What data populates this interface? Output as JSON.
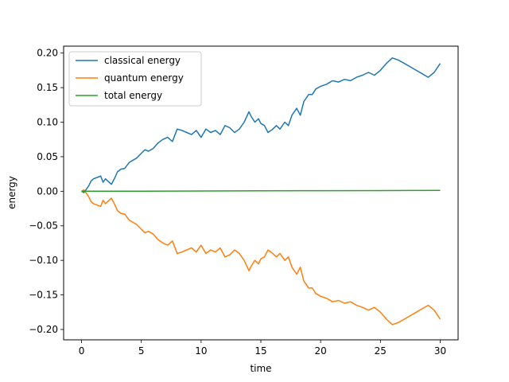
{
  "chart_data": {
    "type": "line",
    "title": "",
    "xlabel": "time",
    "ylabel": "energy",
    "xlim": [
      -1.5,
      31.5
    ],
    "ylim": [
      -0.215,
      0.21
    ],
    "xticks": [
      0,
      5,
      10,
      15,
      20,
      25,
      30
    ],
    "xtick_labels": [
      "0",
      "5",
      "10",
      "15",
      "20",
      "25",
      "30"
    ],
    "yticks": [
      -0.2,
      -0.15,
      -0.1,
      -0.05,
      0.0,
      0.05,
      0.1,
      0.15,
      0.2
    ],
    "ytick_labels": [
      "−0.20",
      "−0.15",
      "−0.10",
      "−0.05",
      "0.00",
      "0.05",
      "0.10",
      "0.15",
      "0.20"
    ],
    "grid": false,
    "legend": "upper-left",
    "series": [
      {
        "name": "classical energy",
        "color": "#1f77b4",
        "x": [
          0,
          0.2,
          0.4,
          0.6,
          0.8,
          1.0,
          1.3,
          1.6,
          1.8,
          2.0,
          2.3,
          2.5,
          2.8,
          3.0,
          3.3,
          3.6,
          4.0,
          4.3,
          4.6,
          5.0,
          5.3,
          5.6,
          6.0,
          6.4,
          6.8,
          7.2,
          7.6,
          8.0,
          8.4,
          8.8,
          9.2,
          9.6,
          10.0,
          10.4,
          10.8,
          11.2,
          11.6,
          12.0,
          12.4,
          12.8,
          13.2,
          13.6,
          14.0,
          14.2,
          14.5,
          14.8,
          15.0,
          15.3,
          15.6,
          16.0,
          16.3,
          16.6,
          17.0,
          17.3,
          17.6,
          18.0,
          18.3,
          18.6,
          19.0,
          19.3,
          19.6,
          20.0,
          20.5,
          21.0,
          21.5,
          22.0,
          22.5,
          23.0,
          23.5,
          24.0,
          24.5,
          25.0,
          25.5,
          26.0,
          26.5,
          27.0,
          27.5,
          28.0,
          28.5,
          29.0,
          29.5,
          30.0
        ],
        "y": [
          0.0,
          -0.002,
          0.003,
          0.008,
          0.015,
          0.018,
          0.02,
          0.022,
          0.013,
          0.018,
          0.013,
          0.01,
          0.02,
          0.028,
          0.032,
          0.033,
          0.042,
          0.045,
          0.048,
          0.055,
          0.06,
          0.058,
          0.062,
          0.07,
          0.075,
          0.078,
          0.072,
          0.09,
          0.088,
          0.085,
          0.082,
          0.088,
          0.078,
          0.09,
          0.085,
          0.088,
          0.082,
          0.095,
          0.092,
          0.085,
          0.09,
          0.1,
          0.115,
          0.108,
          0.1,
          0.105,
          0.098,
          0.095,
          0.085,
          0.09,
          0.095,
          0.09,
          0.1,
          0.095,
          0.11,
          0.12,
          0.11,
          0.13,
          0.14,
          0.14,
          0.148,
          0.152,
          0.155,
          0.16,
          0.158,
          0.162,
          0.16,
          0.165,
          0.168,
          0.172,
          0.168,
          0.175,
          0.185,
          0.193,
          0.19,
          0.185,
          0.18,
          0.175,
          0.17,
          0.165,
          0.172,
          0.185
        ]
      },
      {
        "name": "quantum energy",
        "color": "#ff7f0e",
        "x": [
          0,
          0.2,
          0.4,
          0.6,
          0.8,
          1.0,
          1.3,
          1.6,
          1.8,
          2.0,
          2.3,
          2.5,
          2.8,
          3.0,
          3.3,
          3.6,
          4.0,
          4.3,
          4.6,
          5.0,
          5.3,
          5.6,
          6.0,
          6.4,
          6.8,
          7.2,
          7.6,
          8.0,
          8.4,
          8.8,
          9.2,
          9.6,
          10.0,
          10.4,
          10.8,
          11.2,
          11.6,
          12.0,
          12.4,
          12.8,
          13.2,
          13.6,
          14.0,
          14.2,
          14.5,
          14.8,
          15.0,
          15.3,
          15.6,
          16.0,
          16.3,
          16.6,
          17.0,
          17.3,
          17.6,
          18.0,
          18.3,
          18.6,
          19.0,
          19.3,
          19.6,
          20.0,
          20.5,
          21.0,
          21.5,
          22.0,
          22.5,
          23.0,
          23.5,
          24.0,
          24.5,
          25.0,
          25.5,
          26.0,
          26.5,
          27.0,
          27.5,
          28.0,
          28.5,
          29.0,
          29.5,
          30.0
        ],
        "y": [
          0.0,
          0.002,
          -0.003,
          -0.008,
          -0.015,
          -0.018,
          -0.02,
          -0.022,
          -0.013,
          -0.018,
          -0.013,
          -0.01,
          -0.02,
          -0.028,
          -0.032,
          -0.033,
          -0.042,
          -0.045,
          -0.048,
          -0.055,
          -0.06,
          -0.058,
          -0.062,
          -0.07,
          -0.075,
          -0.078,
          -0.072,
          -0.09,
          -0.088,
          -0.085,
          -0.082,
          -0.088,
          -0.078,
          -0.09,
          -0.085,
          -0.088,
          -0.082,
          -0.095,
          -0.092,
          -0.085,
          -0.09,
          -0.1,
          -0.115,
          -0.108,
          -0.1,
          -0.105,
          -0.098,
          -0.095,
          -0.085,
          -0.09,
          -0.095,
          -0.09,
          -0.1,
          -0.095,
          -0.11,
          -0.12,
          -0.11,
          -0.13,
          -0.14,
          -0.14,
          -0.148,
          -0.152,
          -0.155,
          -0.16,
          -0.158,
          -0.162,
          -0.16,
          -0.165,
          -0.168,
          -0.172,
          -0.168,
          -0.175,
          -0.185,
          -0.193,
          -0.19,
          -0.185,
          -0.18,
          -0.175,
          -0.17,
          -0.165,
          -0.172,
          -0.185
        ]
      },
      {
        "name": "total energy",
        "color": "#2ca02c",
        "x": [
          0,
          5,
          10,
          15,
          20,
          25,
          30
        ],
        "y": [
          0.0,
          0.0002,
          0.0004,
          0.0006,
          0.0008,
          0.001,
          0.0012
        ]
      }
    ]
  }
}
